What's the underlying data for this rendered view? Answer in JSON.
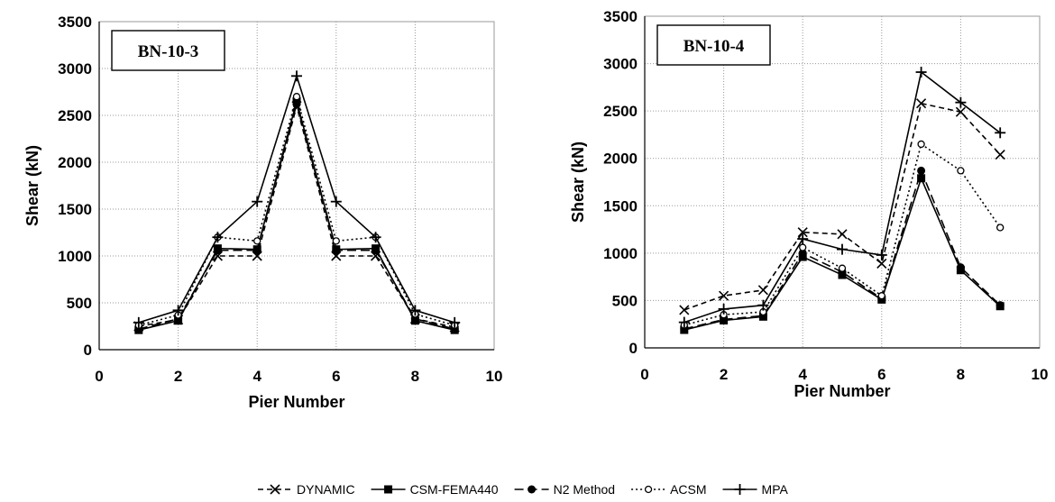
{
  "chart_data": [
    {
      "type": "line",
      "title": "BN-10-3",
      "xlabel": "Pier Number",
      "ylabel": "Shear (kN)",
      "xlim": [
        0,
        10
      ],
      "ylim": [
        0,
        3500
      ],
      "xticks": [
        0,
        2,
        4,
        6,
        8,
        10
      ],
      "yticks": [
        0,
        500,
        1000,
        1500,
        2000,
        2500,
        3000,
        3500
      ],
      "grid": true,
      "x": [
        1,
        2,
        3,
        4,
        5,
        6,
        7,
        8,
        9
      ],
      "series": [
        {
          "name": "DYNAMIC",
          "values": [
            250,
            320,
            1000,
            1000,
            2600,
            1000,
            1000,
            330,
            240
          ]
        },
        {
          "name": "CSM-FEMA440",
          "values": [
            210,
            310,
            1080,
            1070,
            2650,
            1070,
            1080,
            310,
            210
          ]
        },
        {
          "name": "N2 Method",
          "values": [
            220,
            330,
            1060,
            1060,
            2620,
            1060,
            1060,
            330,
            220
          ]
        },
        {
          "name": "ACSM",
          "values": [
            260,
            370,
            1200,
            1160,
            2700,
            1160,
            1200,
            380,
            260
          ]
        },
        {
          "name": "MPA",
          "values": [
            290,
            420,
            1200,
            1580,
            2920,
            1580,
            1200,
            420,
            290
          ]
        }
      ]
    },
    {
      "type": "line",
      "title": "BN-10-4",
      "xlabel": "Pier Number",
      "ylabel": "Shear (kN)",
      "xlim": [
        0,
        10
      ],
      "ylim": [
        0,
        3500
      ],
      "xticks": [
        0,
        2,
        4,
        6,
        8,
        10
      ],
      "yticks": [
        0,
        500,
        1000,
        1500,
        2000,
        2500,
        3000,
        3500
      ],
      "grid": true,
      "x": [
        1,
        2,
        3,
        4,
        5,
        6,
        7,
        8,
        9
      ],
      "series": [
        {
          "name": "DYNAMIC",
          "values": [
            400,
            550,
            610,
            1220,
            1200,
            890,
            2580,
            2490,
            2040
          ]
        },
        {
          "name": "CSM-FEMA440",
          "values": [
            190,
            290,
            330,
            960,
            770,
            510,
            1790,
            820,
            440
          ]
        },
        {
          "name": "N2 Method",
          "values": [
            200,
            300,
            340,
            1000,
            800,
            520,
            1870,
            850,
            450
          ]
        },
        {
          "name": "ACSM",
          "values": [
            240,
            350,
            380,
            1060,
            840,
            550,
            2150,
            1870,
            1270
          ]
        },
        {
          "name": "MPA",
          "values": [
            270,
            410,
            450,
            1150,
            1040,
            980,
            2910,
            2590,
            2270
          ]
        }
      ]
    }
  ],
  "legend": {
    "placement": "bottom-center",
    "items": [
      {
        "label": "DYNAMIC",
        "dash": "6,4",
        "marker": "x"
      },
      {
        "label": "CSM-FEMA440",
        "dash": "",
        "marker": "square"
      },
      {
        "label": "N2 Method",
        "dash": "10,5",
        "marker": "dot"
      },
      {
        "label": "ACSM",
        "dash": "2,3",
        "marker": "circle"
      },
      {
        "label": "MPA",
        "dash": "",
        "marker": "plus"
      }
    ]
  },
  "colors": {
    "ink": "#000000",
    "grid": "#9a9a9a",
    "background": "#ffffff"
  }
}
